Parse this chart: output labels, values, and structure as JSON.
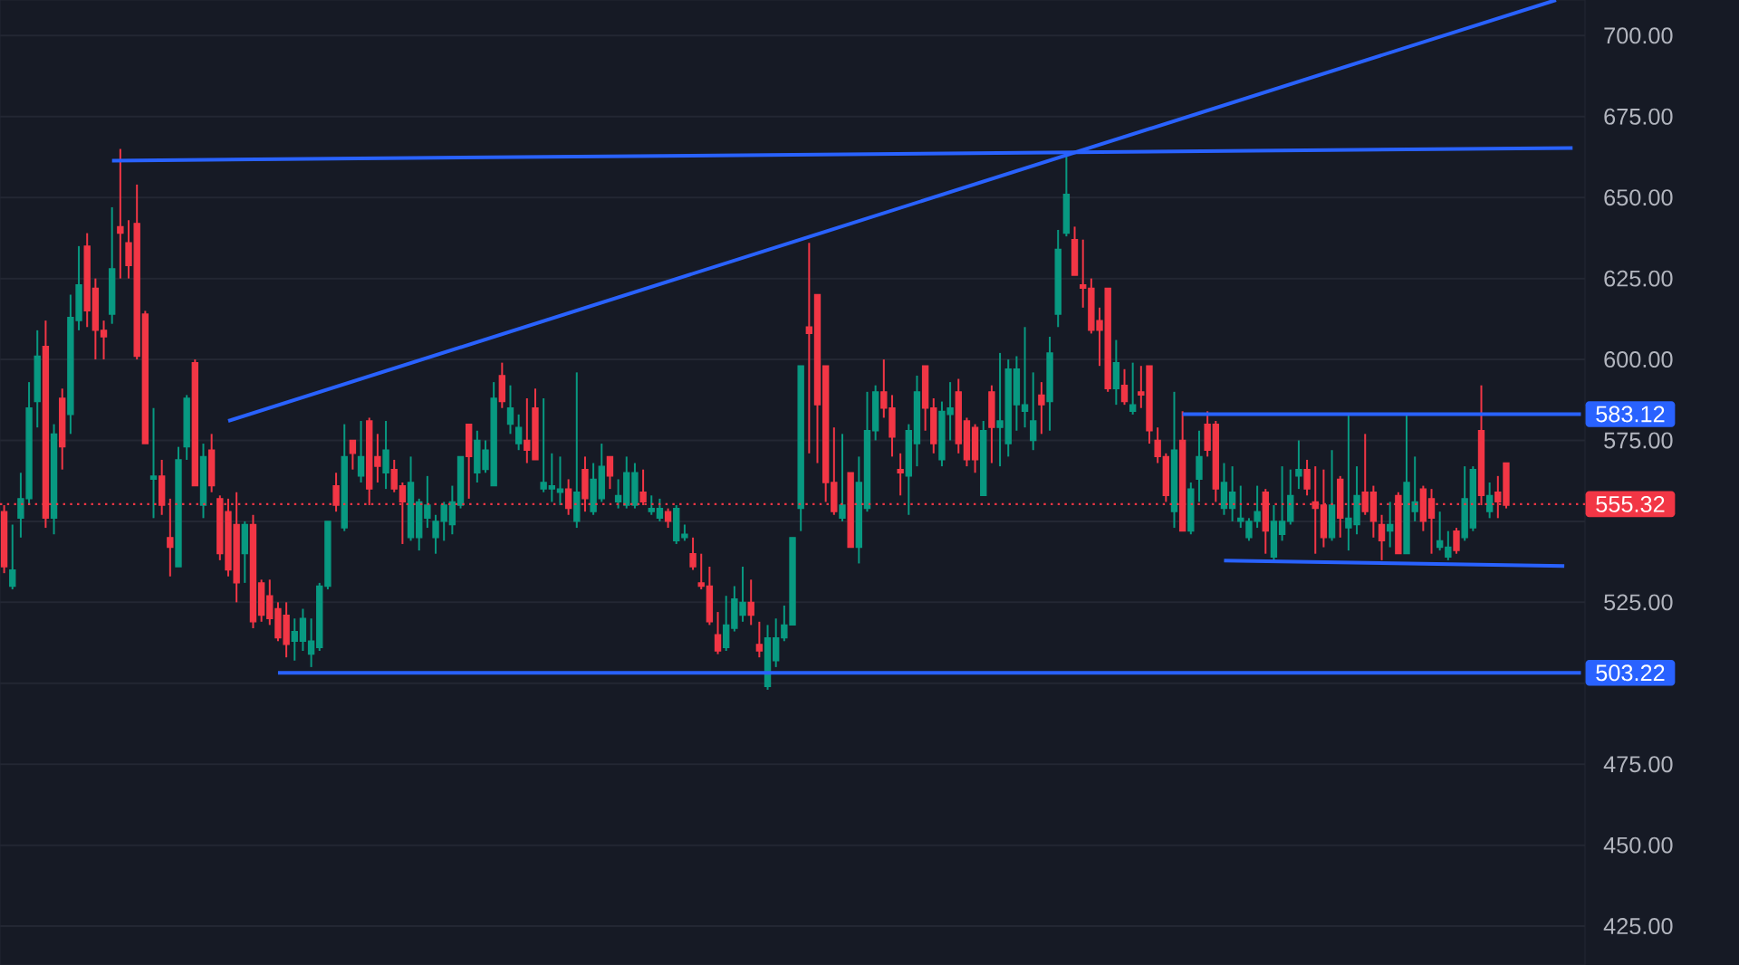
{
  "chart_data": {
    "type": "candlestick",
    "categories": [
      null,
      null,
      null,
      null,
      null,
      null,
      null,
      null,
      null,
      null,
      null,
      null,
      null,
      null,
      null,
      null,
      null,
      null,
      null,
      null,
      null,
      null,
      null,
      null,
      null,
      null,
      null,
      null,
      null,
      null,
      null,
      null,
      null,
      null,
      null,
      null,
      null,
      null,
      null,
      null,
      null,
      null,
      null,
      null,
      null,
      null,
      null,
      null,
      null,
      null,
      null,
      null,
      null,
      null,
      null,
      null,
      null,
      null,
      null,
      null,
      null,
      null,
      null,
      null,
      null,
      null,
      null,
      null,
      null,
      null,
      null,
      null,
      null,
      null,
      null,
      null,
      null,
      null,
      null,
      null,
      null,
      null,
      null,
      null,
      null,
      null,
      null,
      null,
      null,
      null,
      null,
      null,
      null,
      null,
      null,
      null,
      null,
      null,
      null,
      null,
      null,
      null,
      null,
      null,
      null,
      null,
      null,
      null,
      null,
      null,
      null,
      null,
      null,
      null,
      null,
      null,
      null,
      null,
      null,
      null,
      null,
      null,
      null,
      null,
      null,
      null,
      null,
      null,
      null,
      null,
      null,
      null,
      null,
      null,
      null,
      null,
      null,
      null,
      null,
      null,
      null,
      null,
      null,
      null,
      null,
      null,
      null,
      null,
      null,
      null,
      null,
      null,
      null,
      null,
      null,
      null,
      null,
      null,
      null,
      null,
      null,
      null,
      null,
      null,
      null,
      null,
      null,
      null,
      null,
      null,
      null,
      null,
      null,
      null,
      null,
      null,
      null,
      null,
      null,
      null,
      null,
      null,
      null,
      null,
      null,
      null,
      null,
      null,
      null,
      null,
      null
    ],
    "ohlc": [
      [
        553,
        555,
        534,
        536
      ],
      [
        530,
        549,
        529,
        535
      ],
      [
        551,
        565,
        545,
        557
      ],
      [
        557,
        593,
        555,
        585
      ],
      [
        587,
        609,
        579,
        601
      ],
      [
        604,
        612,
        548,
        551
      ],
      [
        551,
        580,
        546,
        577
      ],
      [
        588,
        591,
        566,
        573
      ],
      [
        583,
        620,
        577,
        613
      ],
      [
        612,
        635,
        609,
        623
      ],
      [
        635,
        639,
        610,
        615
      ],
      [
        622,
        625,
        600,
        609
      ],
      [
        609,
        612,
        600,
        607
      ],
      [
        614,
        647,
        611,
        628
      ],
      [
        641,
        665,
        625,
        639
      ],
      [
        636,
        643,
        625,
        629
      ],
      [
        642,
        654,
        600,
        601
      ],
      [
        614,
        615,
        574,
        574
      ],
      [
        563,
        585,
        551,
        564
      ],
      [
        564,
        569,
        552,
        555
      ],
      [
        545,
        557,
        533,
        542
      ],
      [
        536,
        573,
        536,
        569
      ],
      [
        573,
        589,
        569,
        588
      ],
      [
        599,
        600,
        561,
        561
      ],
      [
        555,
        574,
        551,
        570
      ],
      [
        572,
        577,
        559,
        561
      ],
      [
        557,
        558,
        538,
        540
      ],
      [
        553,
        557,
        533,
        535
      ],
      [
        549,
        559,
        525,
        531
      ],
      [
        540,
        550,
        531,
        549
      ],
      [
        549,
        552,
        517,
        519
      ],
      [
        531,
        532,
        519,
        521
      ],
      [
        527,
        532,
        518,
        520
      ],
      [
        523,
        525,
        513,
        514
      ],
      [
        521,
        525,
        508,
        512
      ],
      [
        513,
        520,
        507,
        516
      ],
      [
        513,
        523,
        510,
        520
      ],
      [
        509,
        520,
        505,
        513
      ],
      [
        511,
        531,
        510,
        530
      ],
      [
        530,
        550,
        529,
        550
      ],
      [
        561,
        565,
        553,
        555
      ],
      [
        548,
        580,
        547,
        570
      ],
      [
        575,
        575,
        566,
        571
      ],
      [
        564,
        581,
        562,
        570
      ],
      [
        581,
        582,
        555,
        560
      ],
      [
        570,
        577,
        562,
        567
      ],
      [
        565,
        581,
        560,
        572
      ],
      [
        566,
        569,
        559,
        560
      ],
      [
        561,
        562,
        543,
        556
      ],
      [
        545,
        570,
        544,
        562
      ],
      [
        545,
        557,
        541,
        556
      ],
      [
        551,
        564,
        548,
        555
      ],
      [
        545,
        552,
        540,
        550
      ],
      [
        550,
        556,
        544,
        555
      ],
      [
        549,
        561,
        546,
        556
      ],
      [
        555,
        570,
        554,
        570
      ],
      [
        580,
        580,
        557,
        570
      ],
      [
        565,
        578,
        562,
        575
      ],
      [
        566,
        575,
        565,
        572
      ],
      [
        561,
        593,
        561,
        588
      ],
      [
        595,
        599,
        585,
        587
      ],
      [
        580,
        592,
        577,
        585
      ],
      [
        574,
        583,
        572,
        579
      ],
      [
        575,
        588,
        568,
        572
      ],
      [
        585,
        591,
        569,
        569
      ],
      [
        560,
        588,
        559,
        562
      ],
      [
        560,
        571,
        556,
        561
      ],
      [
        559,
        570,
        555,
        560
      ],
      [
        560,
        563,
        552,
        554
      ],
      [
        550,
        596,
        548,
        559
      ],
      [
        566,
        570,
        553,
        557
      ],
      [
        553,
        568,
        552,
        563
      ],
      [
        557,
        574,
        556,
        567
      ],
      [
        570,
        570,
        560,
        564
      ],
      [
        556,
        563,
        554,
        558
      ],
      [
        555,
        570,
        554,
        565
      ],
      [
        555,
        568,
        554,
        565
      ],
      [
        559,
        566,
        555,
        556
      ],
      [
        553,
        558,
        552,
        554
      ],
      [
        551,
        557,
        550,
        554
      ],
      [
        553,
        554,
        548,
        550
      ],
      [
        544,
        555,
        543,
        554
      ],
      [
        545,
        549,
        544,
        546
      ],
      [
        540,
        545,
        535,
        536
      ],
      [
        531,
        540,
        529,
        530
      ],
      [
        530,
        536,
        518,
        519
      ],
      [
        515,
        522,
        509,
        510
      ],
      [
        511,
        527,
        510,
        518
      ],
      [
        517,
        530,
        516,
        526
      ],
      [
        521,
        536,
        519,
        525
      ],
      [
        525,
        532,
        518,
        521
      ],
      [
        512,
        519,
        508,
        510
      ],
      [
        499,
        518,
        498,
        514
      ],
      [
        507,
        520,
        505,
        514
      ],
      [
        514,
        524,
        513,
        518
      ],
      [
        518,
        545,
        518,
        545
      ],
      [
        554,
        598,
        547,
        598
      ],
      [
        610,
        636,
        571,
        608
      ],
      [
        620,
        620,
        568,
        586
      ],
      [
        598,
        598,
        556,
        562
      ],
      [
        562,
        579,
        552,
        553
      ],
      [
        551,
        577,
        550,
        555
      ],
      [
        565,
        565,
        542,
        542
      ],
      [
        542,
        570,
        537,
        562
      ],
      [
        554,
        590,
        553,
        578
      ],
      [
        578,
        592,
        575,
        590
      ],
      [
        590,
        600,
        582,
        585
      ],
      [
        585,
        589,
        570,
        576
      ],
      [
        566,
        571,
        558,
        565
      ],
      [
        564,
        580,
        552,
        578
      ],
      [
        574,
        595,
        567,
        590
      ],
      [
        598,
        598,
        578,
        585
      ],
      [
        585,
        588,
        571,
        574
      ],
      [
        569,
        587,
        567,
        584
      ],
      [
        583,
        593,
        575,
        585
      ],
      [
        590,
        594,
        571,
        574
      ],
      [
        581,
        582,
        567,
        569
      ],
      [
        579,
        580,
        565,
        569
      ],
      [
        558,
        581,
        558,
        578
      ],
      [
        590,
        592,
        568,
        579
      ],
      [
        579,
        602,
        567,
        581
      ],
      [
        574,
        600,
        570,
        597
      ],
      [
        586,
        601,
        578,
        597
      ],
      [
        584,
        610,
        579,
        586
      ],
      [
        575,
        596,
        572,
        581
      ],
      [
        589,
        593,
        577,
        586
      ],
      [
        587,
        607,
        578,
        602
      ],
      [
        614,
        640,
        610,
        634
      ],
      [
        639,
        664,
        638,
        651
      ],
      [
        637,
        641,
        626,
        626
      ],
      [
        623,
        637,
        616,
        622
      ],
      [
        622,
        625,
        608,
        609
      ],
      [
        612,
        616,
        598,
        609
      ],
      [
        622,
        622,
        590,
        591
      ],
      [
        591,
        606,
        586,
        599
      ],
      [
        592,
        597,
        586,
        587
      ],
      [
        584,
        599,
        583,
        586
      ],
      [
        590,
        598,
        585,
        589
      ],
      [
        598,
        598,
        574,
        578
      ],
      [
        575,
        579,
        568,
        570
      ],
      [
        570,
        571,
        556,
        558
      ],
      [
        553,
        590,
        548,
        572
      ],
      [
        575,
        584,
        547,
        547
      ],
      [
        547,
        562,
        546,
        560
      ],
      [
        563,
        578,
        556,
        570
      ],
      [
        580,
        584,
        570,
        572
      ],
      [
        580,
        581,
        556,
        560
      ],
      [
        554,
        568,
        552,
        562
      ],
      [
        554,
        567,
        550,
        559
      ],
      [
        550,
        561,
        548,
        551
      ],
      [
        545,
        551,
        544,
        550
      ],
      [
        550,
        561,
        548,
        553
      ],
      [
        559,
        560,
        540,
        547
      ],
      [
        539,
        555,
        538,
        550
      ],
      [
        546,
        567,
        544,
        550
      ],
      [
        550,
        566,
        549,
        558
      ],
      [
        564,
        575,
        560,
        566
      ],
      [
        566,
        569,
        558,
        560
      ],
      [
        556,
        567,
        540,
        554
      ],
      [
        555,
        566,
        542,
        545
      ],
      [
        545,
        572,
        544,
        555
      ],
      [
        563,
        564,
        545,
        551
      ],
      [
        548,
        583,
        541,
        551
      ],
      [
        549,
        567,
        546,
        558
      ],
      [
        559,
        577,
        552,
        553
      ],
      [
        559,
        561,
        545,
        550
      ],
      [
        549,
        552,
        538,
        544
      ],
      [
        547,
        556,
        542,
        549
      ],
      [
        558,
        559,
        540,
        540
      ],
      [
        540,
        583,
        540,
        562
      ],
      [
        553,
        570,
        550,
        556
      ],
      [
        560,
        561,
        547,
        550
      ],
      [
        557,
        560,
        540,
        551
      ],
      [
        542,
        553,
        541,
        544
      ],
      [
        539,
        547,
        538,
        542
      ],
      [
        547,
        548,
        540,
        541
      ],
      [
        545,
        567,
        544,
        557
      ],
      [
        548,
        567,
        547,
        566
      ],
      [
        578,
        592,
        555,
        558
      ],
      [
        553,
        562,
        551,
        558
      ],
      [
        559,
        564,
        551,
        556
      ],
      [
        568,
        568,
        554,
        555
      ],
      null,
      null,
      null,
      null,
      null,
      null,
      null,
      null,
      null
    ],
    "colors": [
      "#f23645",
      "#089981",
      "#089981",
      "#089981",
      "#089981",
      "#f23645",
      "#089981",
      "#f23645",
      "#089981",
      "#089981",
      "#f23645",
      "#f23645",
      "#f23645",
      "#089981",
      "#f23645",
      "#f23645",
      "#f23645",
      "#f23645",
      "#089981",
      "#f23645",
      "#f23645",
      "#089981",
      "#089981",
      "#f23645",
      "#089981",
      "#f23645",
      "#f23645",
      "#f23645",
      "#f23645",
      "#089981",
      "#f23645",
      "#f23645",
      "#f23645",
      "#f23645",
      "#f23645",
      "#089981",
      "#089981",
      "#089981",
      "#089981",
      "#089981",
      "#f23645",
      "#089981",
      "#f23645",
      "#089981",
      "#f23645",
      "#f23645",
      "#089981",
      "#f23645",
      "#f23645",
      "#089981",
      "#089981",
      "#089981",
      "#089981",
      "#089981",
      "#089981",
      "#089981",
      "#f23645",
      "#089981",
      "#089981",
      "#089981",
      "#f23645",
      "#089981",
      "#089981",
      "#f23645",
      "#f23645",
      "#089981",
      "#089981",
      "#089981",
      "#f23645",
      "#089981",
      "#f23645",
      "#089981",
      "#089981",
      "#f23645",
      "#089981",
      "#089981",
      "#089981",
      "#f23645",
      "#089981",
      "#089981",
      "#f23645",
      "#089981",
      "#089981",
      "#f23645",
      "#f23645",
      "#f23645",
      "#f23645",
      "#089981",
      "#089981",
      "#089981",
      "#f23645",
      "#f23645",
      "#089981",
      "#089981",
      "#089981",
      "#089981",
      "#089981",
      "#f23645",
      "#f23645",
      "#f23645",
      "#f23645",
      "#089981",
      "#f23645",
      "#089981",
      "#089981",
      "#089981",
      "#f23645",
      "#f23645",
      "#f23645",
      "#089981",
      "#089981",
      "#f23645",
      "#f23645",
      "#089981",
      "#089981",
      "#f23645",
      "#f23645",
      "#f23645",
      "#089981",
      "#f23645",
      "#089981",
      "#089981",
      "#089981",
      "#089981",
      "#089981",
      "#f23645",
      "#089981",
      "#089981",
      "#089981",
      "#f23645",
      "#f23645",
      "#f23645",
      "#f23645",
      "#f23645",
      "#089981",
      "#f23645",
      "#089981",
      "#f23645",
      "#f23645",
      "#f23645",
      "#f23645",
      "#089981",
      "#f23645",
      "#089981",
      "#089981",
      "#f23645",
      "#f23645",
      "#089981",
      "#089981",
      "#089981",
      "#089981",
      "#089981",
      "#f23645",
      "#089981",
      "#089981",
      "#089981",
      "#089981",
      "#f23645",
      "#f23645",
      "#f23645",
      "#089981",
      "#f23645",
      "#089981",
      "#089981",
      "#f23645",
      "#f23645",
      "#f23645",
      "#089981",
      "#f23645",
      "#089981",
      "#089981",
      "#f23645",
      "#f23645",
      "#089981",
      "#089981",
      "#f23645",
      "#089981",
      "#089981",
      "#f23645",
      "#089981",
      "#f23645",
      "#f23645",
      null,
      null,
      null,
      null,
      null,
      null,
      null,
      null,
      null
    ],
    "series": [
      {
        "type": "line",
        "color": "#2962ff",
        "values": [
          null,
          null,
          null,
          null,
          null,
          null,
          null,
          null,
          null,
          null,
          null,
          null,
          null,
          661.4,
          null,
          null,
          null,
          null,
          null,
          null,
          null,
          null,
          null,
          null,
          null,
          null,
          null,
          null,
          null,
          null,
          null,
          null,
          null,
          null,
          null,
          null,
          null,
          null,
          null,
          null,
          null,
          null,
          null,
          null,
          null,
          null,
          null,
          null,
          null,
          null,
          null,
          null,
          null,
          null,
          null,
          null,
          null,
          null,
          null,
          null,
          null,
          null,
          null,
          null,
          null,
          null,
          null,
          null,
          null,
          null,
          null,
          null,
          null,
          null,
          null,
          null,
          null,
          null,
          null,
          null,
          null,
          null,
          null,
          null,
          null,
          null,
          null,
          null,
          null,
          null,
          null,
          null,
          null,
          null,
          null,
          null,
          null,
          null,
          null,
          null,
          null,
          null,
          null,
          null,
          null,
          null,
          null,
          null,
          null,
          null,
          null,
          null,
          null,
          null,
          null,
          null,
          null,
          null,
          null,
          null,
          null,
          null,
          null,
          null,
          null,
          null,
          null,
          null,
          null,
          null,
          null,
          null,
          null,
          null,
          null,
          null,
          null,
          null,
          null,
          null,
          null,
          null,
          null,
          null,
          null,
          null,
          null,
          null,
          null,
          null,
          null,
          null,
          null,
          null,
          null,
          null,
          null,
          null,
          null,
          null,
          null,
          null,
          null,
          null,
          null,
          null,
          null,
          null,
          null,
          null,
          null,
          null,
          null,
          null,
          null,
          null,
          null,
          null,
          null,
          null,
          null,
          null,
          null,
          null,
          null,
          null,
          null,
          null,
          null,
          665.3,
          null
        ]
      },
      {
        "type": "line",
        "color": "#2962ff",
        "values": [
          null,
          null,
          null,
          null,
          null,
          null,
          null,
          null,
          null,
          null,
          null,
          null,
          null,
          null,
          null,
          null,
          null,
          null,
          null,
          null,
          null,
          null,
          null,
          null,
          null,
          null,
          null,
          581,
          null,
          null,
          null,
          null,
          null,
          null,
          null,
          null,
          null,
          null,
          null,
          null,
          null,
          null,
          null,
          null,
          null,
          null,
          null,
          null,
          null,
          null,
          null,
          null,
          null,
          null,
          null,
          null,
          null,
          null,
          null,
          null,
          null,
          null,
          null,
          null,
          null,
          null,
          null,
          null,
          null,
          null,
          null,
          null,
          null,
          null,
          null,
          null,
          null,
          null,
          null,
          null,
          null,
          null,
          null,
          null,
          null,
          null,
          null,
          null,
          null,
          null,
          null,
          null,
          null,
          null,
          null,
          null,
          null,
          null,
          null,
          null,
          null,
          null,
          null,
          null,
          null,
          null,
          null,
          null,
          null,
          null,
          null,
          null,
          null,
          null,
          null,
          null,
          null,
          null,
          null,
          null,
          null,
          null,
          null,
          null,
          null,
          null,
          null,
          null,
          null,
          null,
          null,
          null,
          null,
          null,
          null,
          null,
          null,
          null,
          null,
          null,
          null,
          null,
          null,
          null,
          null,
          null,
          null,
          null,
          null,
          null,
          null,
          null,
          null,
          null,
          null,
          null,
          null,
          null,
          null,
          null,
          null,
          null,
          null,
          null,
          null,
          null,
          null,
          null,
          null,
          null,
          null,
          null,
          null,
          null,
          null,
          null,
          null,
          null,
          null,
          null,
          null,
          null,
          null,
          null,
          null,
          null,
          null,
          711,
          null,
          null,
          null
        ]
      },
      {
        "type": "line",
        "color": "#2962ff",
        "values": [
          null,
          null,
          null,
          null,
          null,
          null,
          null,
          null,
          null,
          null,
          null,
          null,
          null,
          null,
          null,
          null,
          null,
          null,
          null,
          null,
          null,
          null,
          null,
          null,
          null,
          null,
          null,
          null,
          null,
          null,
          null,
          null,
          null,
          null,
          null,
          null,
          null,
          null,
          null,
          null,
          null,
          null,
          null,
          null,
          null,
          null,
          null,
          null,
          null,
          null,
          null,
          null,
          null,
          null,
          null,
          null,
          null,
          null,
          null,
          null,
          null,
          null,
          null,
          null,
          null,
          null,
          null,
          null,
          null,
          null,
          null,
          null,
          null,
          null,
          null,
          null,
          null,
          null,
          null,
          null,
          null,
          null,
          null,
          null,
          null,
          null,
          null,
          null,
          null,
          null,
          null,
          null,
          null,
          null,
          null,
          null,
          null,
          null,
          null,
          null,
          null,
          null,
          null,
          null,
          null,
          null,
          null,
          null,
          null,
          null,
          null,
          null,
          null,
          null,
          null,
          null,
          null,
          null,
          null,
          null,
          null,
          null,
          null,
          null,
          null,
          null,
          null,
          null,
          null,
          null,
          null,
          null,
          null,
          null,
          null,
          null,
          null,
          null,
          null,
          null,
          null,
          null,
          583.12,
          null,
          null,
          null,
          null,
          null,
          null,
          null,
          null,
          null,
          null,
          null,
          null,
          null,
          null,
          null,
          null,
          null,
          null,
          null,
          null,
          null,
          null,
          null,
          null,
          null,
          null,
          null,
          null,
          null,
          null,
          null,
          null,
          null,
          null,
          null,
          null,
          null,
          null,
          null,
          null,
          null,
          null,
          null,
          null,
          null,
          null,
          null,
          583.12
        ]
      },
      {
        "type": "line",
        "color": "#2962ff",
        "values": [
          null,
          null,
          null,
          null,
          null,
          null,
          null,
          null,
          null,
          null,
          null,
          null,
          null,
          null,
          null,
          null,
          null,
          null,
          null,
          null,
          null,
          null,
          null,
          null,
          null,
          null,
          null,
          null,
          null,
          null,
          null,
          null,
          null,
          null,
          null,
          null,
          null,
          null,
          null,
          null,
          null,
          null,
          null,
          null,
          null,
          null,
          null,
          null,
          null,
          null,
          null,
          null,
          null,
          null,
          null,
          null,
          null,
          null,
          null,
          null,
          null,
          null,
          null,
          null,
          null,
          null,
          null,
          null,
          null,
          null,
          null,
          null,
          null,
          null,
          null,
          null,
          null,
          null,
          null,
          null,
          null,
          null,
          null,
          null,
          null,
          null,
          null,
          null,
          null,
          null,
          null,
          null,
          null,
          null,
          null,
          null,
          null,
          null,
          null,
          null,
          null,
          null,
          null,
          null,
          null,
          null,
          null,
          null,
          null,
          null,
          null,
          null,
          null,
          null,
          null,
          null,
          null,
          null,
          null,
          null,
          null,
          null,
          null,
          null,
          null,
          null,
          null,
          null,
          null,
          null,
          null,
          null,
          null,
          null,
          null,
          null,
          null,
          null,
          null,
          null,
          null,
          null,
          null,
          null,
          null,
          null,
          null,
          537.9,
          null,
          null,
          null,
          null,
          null,
          null,
          null,
          null,
          null,
          null,
          null,
          null,
          null,
          null,
          null,
          null,
          null,
          null,
          null,
          null,
          null,
          null,
          null,
          null,
          null,
          null,
          null,
          null,
          null,
          null,
          null,
          null,
          null,
          null,
          null,
          null,
          null,
          null,
          null,
          null,
          536.2,
          null,
          null
        ]
      },
      {
        "type": "line",
        "color": "#2962ff",
        "values": [
          null,
          null,
          null,
          null,
          null,
          null,
          null,
          null,
          null,
          null,
          null,
          null,
          null,
          null,
          null,
          null,
          null,
          null,
          null,
          null,
          null,
          null,
          null,
          null,
          null,
          null,
          null,
          null,
          null,
          null,
          null,
          null,
          null,
          503.22,
          null,
          null,
          null,
          null,
          null,
          null,
          null,
          null,
          null,
          null,
          null,
          null,
          null,
          null,
          null,
          null,
          null,
          null,
          null,
          null,
          null,
          null,
          null,
          null,
          null,
          null,
          null,
          null,
          null,
          null,
          null,
          null,
          null,
          null,
          null,
          null,
          null,
          null,
          null,
          null,
          null,
          null,
          null,
          null,
          null,
          null,
          null,
          null,
          null,
          null,
          null,
          null,
          null,
          null,
          null,
          null,
          null,
          null,
          null,
          null,
          null,
          null,
          null,
          null,
          null,
          null,
          null,
          null,
          null,
          null,
          null,
          null,
          null,
          null,
          null,
          null,
          null,
          null,
          null,
          null,
          null,
          null,
          null,
          null,
          null,
          null,
          null,
          null,
          null,
          null,
          null,
          null,
          null,
          null,
          null,
          null,
          null,
          null,
          null,
          null,
          null,
          null,
          null,
          null,
          null,
          null,
          null,
          null,
          null,
          null,
          null,
          null,
          null,
          null,
          null,
          null,
          null,
          null,
          null,
          null,
          null,
          null,
          null,
          null,
          null,
          null,
          null,
          null,
          null,
          null,
          null,
          null,
          null,
          null,
          null,
          null,
          null,
          null,
          null,
          null,
          null,
          null,
          null,
          null,
          null,
          null,
          null,
          null,
          null,
          null,
          null,
          null,
          null,
          null,
          null,
          null,
          503.22
        ]
      }
    ],
    "ref_lines": [
      {
        "axis": "y",
        "value": 555.32,
        "label": "555.32",
        "color": "#f23645",
        "line_style": "dotted"
      }
    ],
    "annotations": [
      "583.12",
      "503.22"
    ],
    "ylim": [
      413,
      711
    ],
    "yticks": [
      {
        "value": 425,
        "label": "425.00"
      },
      {
        "value": 450,
        "label": "450.00"
      },
      {
        "value": 475,
        "label": "475.00"
      },
      {
        "value": 500,
        "label": null
      },
      {
        "value": 525,
        "label": "525.00"
      },
      {
        "value": 550,
        "label": null
      },
      {
        "value": 575,
        "label": "575.00"
      },
      {
        "value": 600,
        "label": "600.00"
      },
      {
        "value": 625,
        "label": "625.00"
      },
      {
        "value": 650,
        "label": "650.00"
      },
      {
        "value": 675,
        "label": "675.00"
      },
      {
        "value": 700,
        "label": "700.00"
      }
    ],
    "grid": "y",
    "tick_labels": "y"
  }
}
